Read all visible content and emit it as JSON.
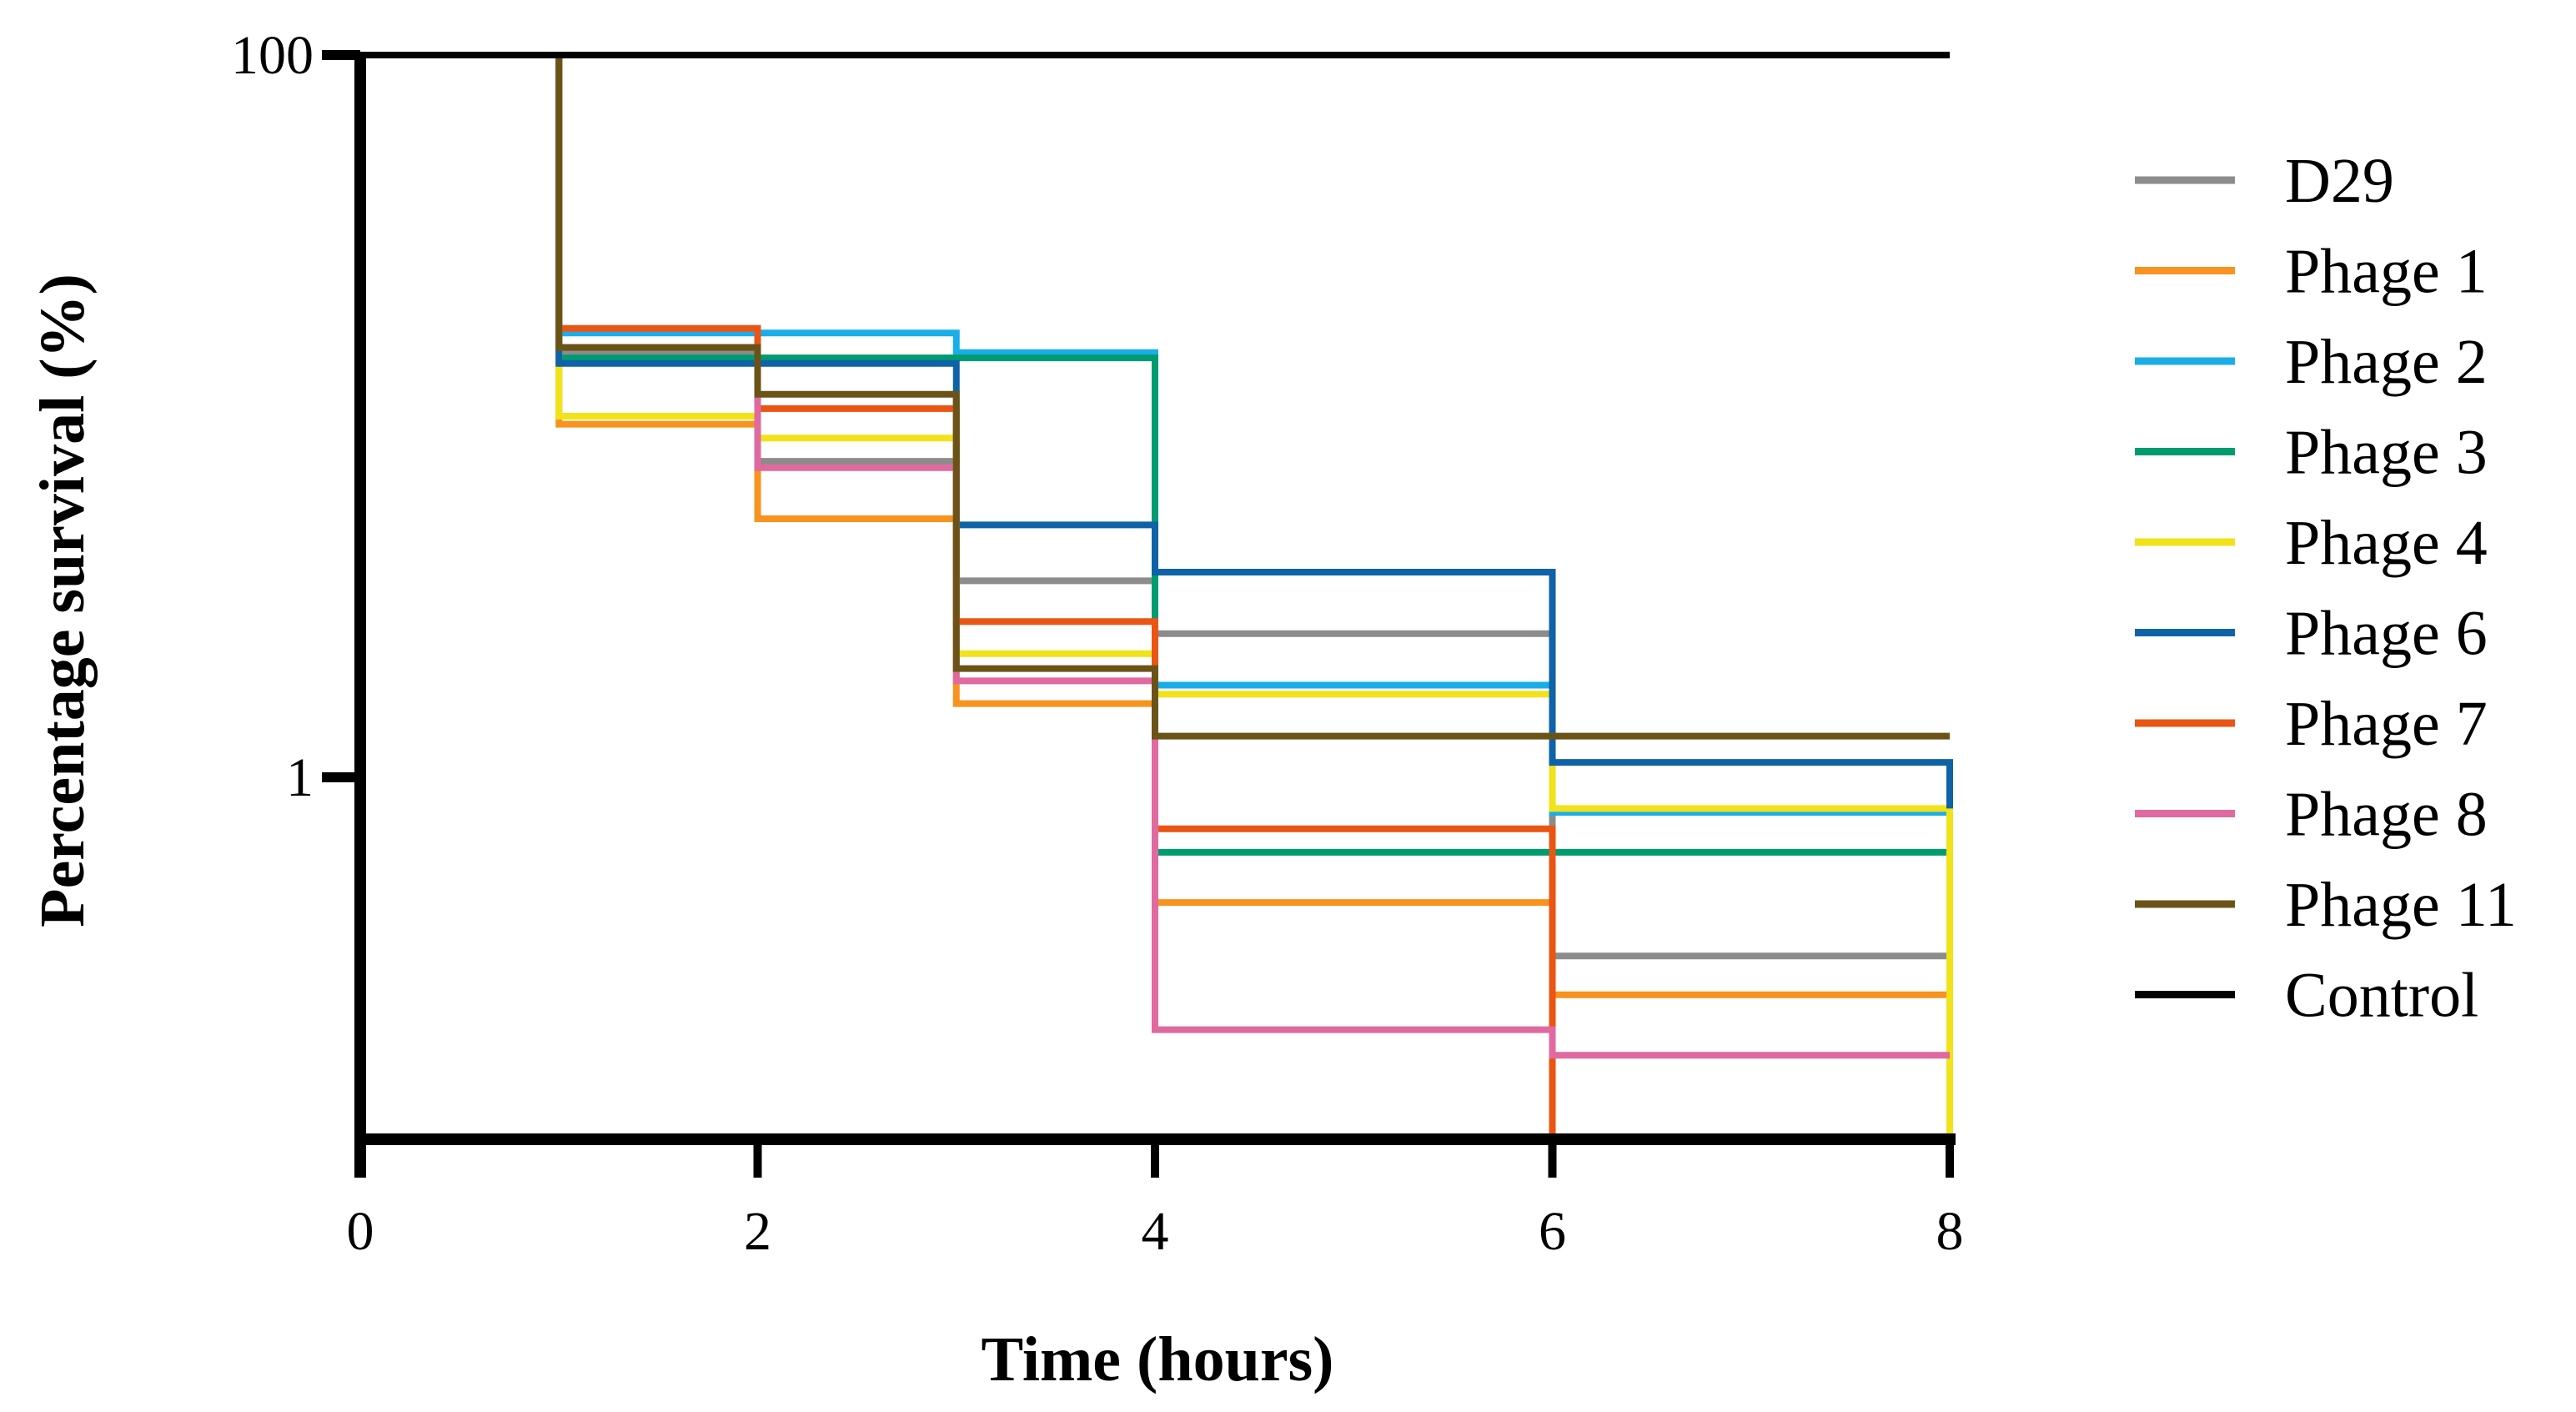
{
  "chart_data": {
    "type": "line",
    "step": true,
    "title": "",
    "xlabel": "Time (hours)",
    "ylabel": "Percentage survival (%)",
    "xlim": [
      0,
      8
    ],
    "ylim": [
      0.1,
      100
    ],
    "yscale": "log",
    "xticks": [
      0,
      2,
      4,
      6,
      8
    ],
    "xtick_labels": [
      "0",
      "2",
      "4",
      "6",
      "8"
    ],
    "yticks": [
      1,
      100
    ],
    "ytick_labels": [
      "1",
      "100"
    ],
    "legend_position": "right",
    "series": [
      {
        "name": "D29",
        "color": "#8c8c8c",
        "x": [
          0,
          1,
          2,
          3,
          4,
          6,
          8
        ],
        "y": [
          100,
          15,
          7.5,
          3.5,
          2.5,
          0.32,
          0.32
        ]
      },
      {
        "name": "Phage 1",
        "color": "#f7931e",
        "x": [
          0,
          1,
          2,
          3,
          4,
          6,
          8
        ],
        "y": [
          100,
          9.5,
          5.2,
          1.6,
          0.45,
          0.25,
          0.25
        ]
      },
      {
        "name": "Phage 2",
        "color": "#1aaee8",
        "x": [
          0,
          1,
          2,
          3,
          4,
          6,
          8
        ],
        "y": [
          100,
          17,
          17,
          15,
          1.8,
          0.8,
          0.8
        ]
      },
      {
        "name": "Phage 3",
        "color": "#009b6f",
        "x": [
          0,
          1,
          2,
          3,
          4,
          6,
          8
        ],
        "y": [
          100,
          14.5,
          14.5,
          14.5,
          0.62,
          0.62,
          0.62
        ]
      },
      {
        "name": "Phage 4",
        "color": "#f1e21a",
        "x": [
          0,
          1,
          2,
          3,
          4,
          6,
          8
        ],
        "y": [
          100,
          10,
          8.7,
          2.2,
          1.7,
          0.82,
          0.1
        ]
      },
      {
        "name": "Phage 6",
        "color": "#0e62a8",
        "x": [
          0,
          1,
          2,
          3,
          4,
          6,
          8
        ],
        "y": [
          100,
          14,
          14,
          5,
          3.7,
          1.1,
          0.82
        ]
      },
      {
        "name": "Phage 7",
        "color": "#ea5514",
        "x": [
          0,
          1,
          2,
          3,
          4,
          6,
          8
        ],
        "y": [
          100,
          17.5,
          10.5,
          2.7,
          0.72,
          0.1,
          0.1
        ]
      },
      {
        "name": "Phage 8",
        "color": "#e0699f",
        "x": [
          0,
          1,
          2,
          3,
          4,
          6,
          8
        ],
        "y": [
          100,
          15.5,
          7.2,
          1.85,
          0.2,
          0.17,
          0.17
        ]
      },
      {
        "name": "Phage 11",
        "color": "#6b5318",
        "x": [
          0,
          1,
          2,
          3,
          4,
          6,
          8
        ],
        "y": [
          100,
          15.5,
          11.5,
          2,
          1.3,
          1.3,
          1.3
        ]
      },
      {
        "name": "Control",
        "color": "#000000",
        "x": [
          0,
          8
        ],
        "y": [
          100,
          100
        ]
      }
    ]
  }
}
